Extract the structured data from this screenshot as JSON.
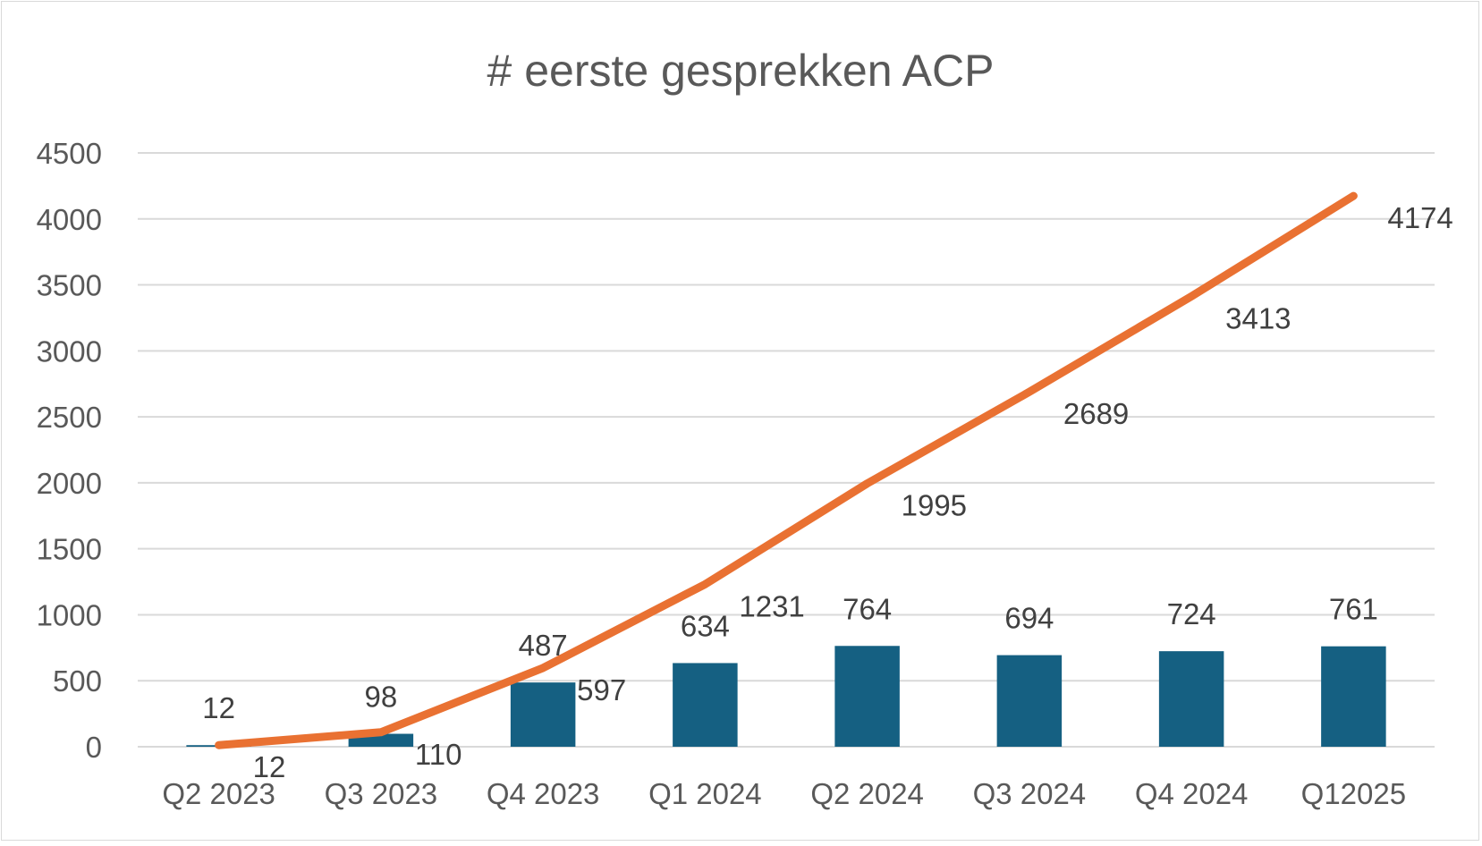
{
  "chart_data": {
    "type": "bar+line",
    "title": "# eerste gesprekken ACP",
    "categories": [
      "Q2 2023",
      "Q3 2023",
      "Q4 2023",
      "Q1 2024",
      "Q2 2024",
      "Q3 2024",
      "Q4 2024",
      "Q12025"
    ],
    "series": [
      {
        "type": "bar",
        "values": [
          12,
          98,
          487,
          634,
          764,
          694,
          724,
          761
        ],
        "color": "#156082"
      },
      {
        "type": "line",
        "values": [
          12,
          110,
          597,
          1231,
          1995,
          2689,
          3413,
          4174
        ],
        "color": "#E97132"
      }
    ],
    "y_ticks": [
      "0",
      "500",
      "1000",
      "1500",
      "2000",
      "2500",
      "3000",
      "3500",
      "4000",
      "4500"
    ],
    "ylim": [
      0,
      4500
    ],
    "grid": true,
    "legend": "none"
  }
}
